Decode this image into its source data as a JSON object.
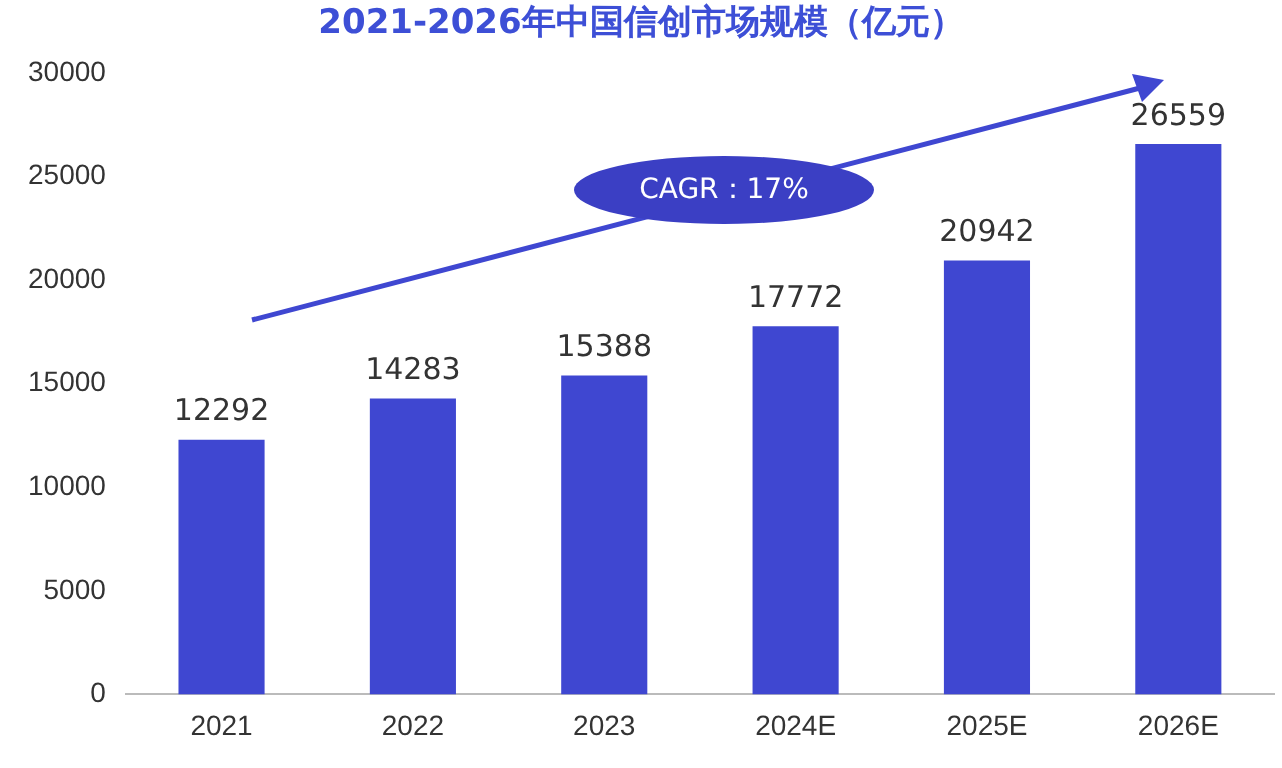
{
  "chart_data": {
    "type": "bar",
    "title": "2021-2026年中国信创市场规模（亿元）",
    "categories": [
      "2021",
      "2022",
      "2023",
      "2024E",
      "2025E",
      "2026E"
    ],
    "values": [
      12292,
      14283,
      15388,
      17772,
      20942,
      26559
    ],
    "color": "#3f47d1",
    "ylim": [
      0,
      30000
    ],
    "yticks": [
      0,
      5000,
      10000,
      15000,
      20000,
      25000,
      30000
    ],
    "grid": false,
    "legend": false,
    "data_labels": true,
    "annotations": [
      "CAGR：17%"
    ]
  }
}
